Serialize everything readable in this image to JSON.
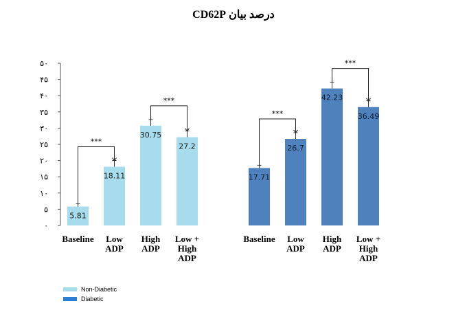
{
  "chart_data": {
    "type": "bar",
    "title": "درصد بیان CD62P",
    "ylim": [
      0,
      50
    ],
    "yticks": [
      "۰",
      "۵",
      "۱۰",
      "۱۵",
      "۲۰",
      "۲۵",
      "۳۰",
      "۳۵",
      "۴۰",
      "۴۵",
      "۵۰"
    ],
    "grid": false,
    "legend_placement": "bottom-left",
    "groups": [
      {
        "name": "Non-Diabetic",
        "color": "#a6dcec",
        "categories": [
          "Baseline",
          "Low\nADP",
          "High\nADP",
          "Low +\nHigh\nADP"
        ],
        "values": [
          5.81,
          18.11,
          30.75,
          27.2
        ],
        "value_labels": [
          "5.81",
          "18.11",
          "30.75",
          "27.2"
        ],
        "significance": [
          {
            "from": 0,
            "to": 1,
            "label": "***"
          },
          {
            "from": 2,
            "to": 3,
            "label": "***"
          }
        ]
      },
      {
        "name": "Diabetic",
        "color": "#4f81bd",
        "categories": [
          "Baseline",
          "Low\nADP",
          "High\nADP",
          "Low +\nHigh\nADP"
        ],
        "values": [
          17.71,
          26.7,
          42.23,
          36.49
        ],
        "value_labels": [
          "17.71",
          "26.7",
          "42.23",
          "36.49"
        ],
        "significance": [
          {
            "from": 0,
            "to": 1,
            "label": "***"
          },
          {
            "from": 2,
            "to": 3,
            "label": "***"
          }
        ]
      }
    ]
  },
  "legend": [
    {
      "label": "Non-Diabetic",
      "color": "#a6dcec"
    },
    {
      "label": "Diabetic",
      "color": "#2b7fd4"
    }
  ]
}
